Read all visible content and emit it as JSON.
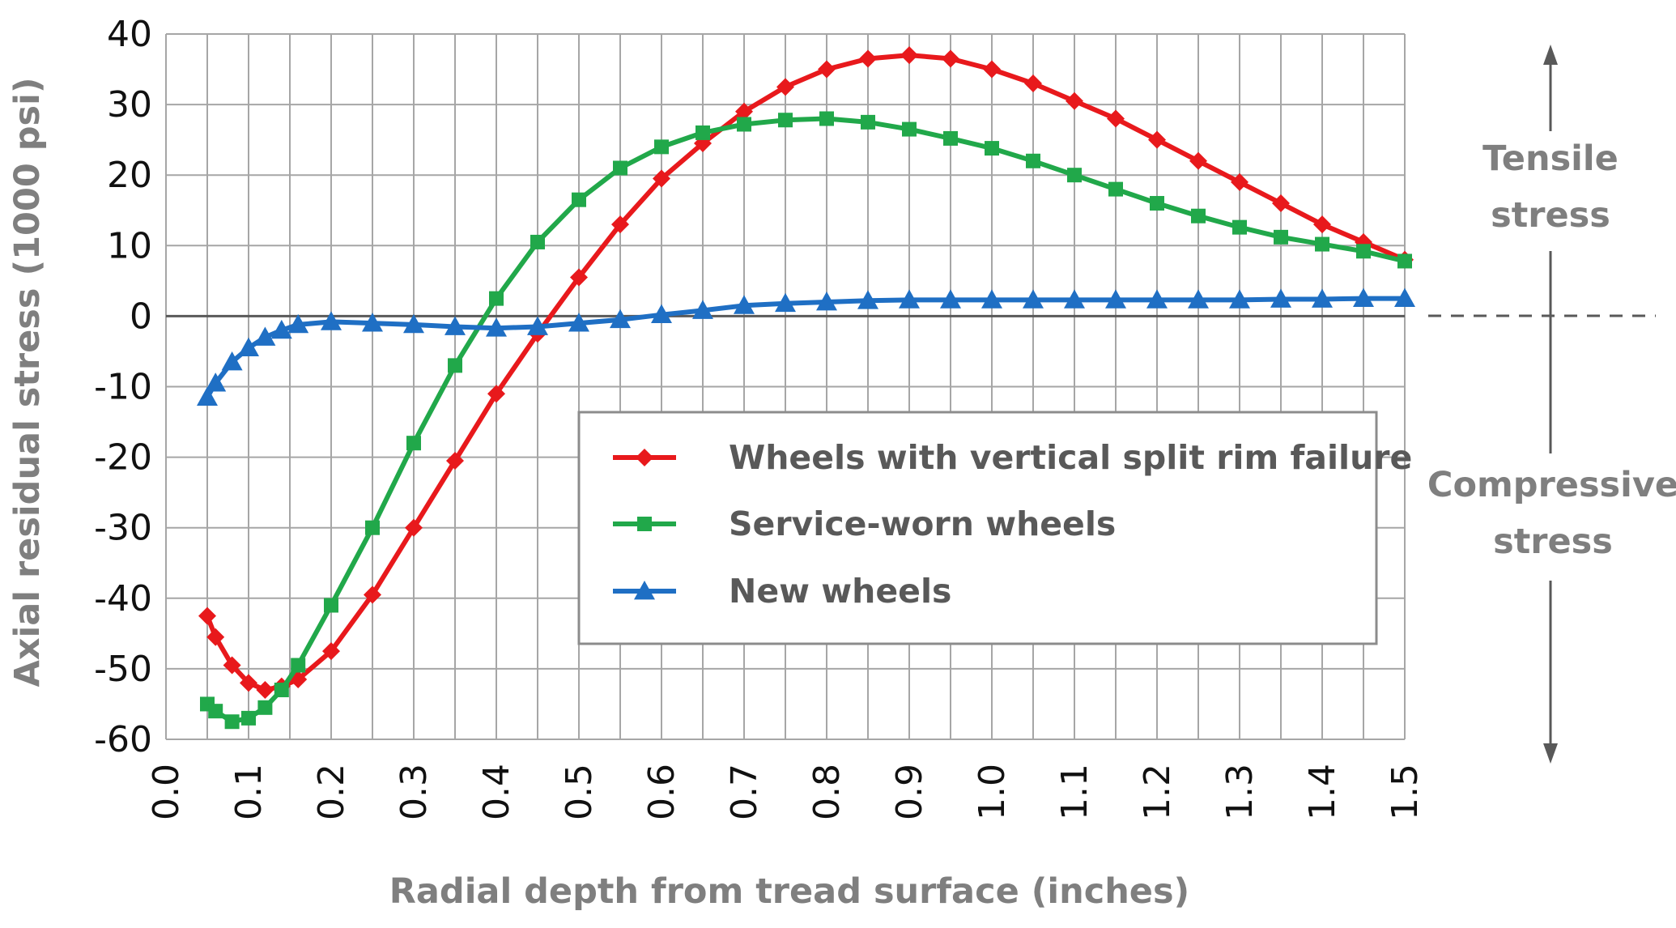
{
  "chart_data": {
    "type": "line",
    "title": "",
    "xlabel": "Radial depth from tread surface (inches)",
    "ylabel": "Axial residual stress (1000 psi)",
    "xlim": [
      0.0,
      1.5
    ],
    "ylim": [
      -60,
      40
    ],
    "x_ticks": [
      "0.0",
      "0.1",
      "0.2",
      "0.3",
      "0.4",
      "0.5",
      "0.6",
      "0.7",
      "0.8",
      "0.9",
      "1.0",
      "1.1",
      "1.2",
      "1.3",
      "1.4",
      "1.5"
    ],
    "y_ticks": [
      "40",
      "30",
      "20",
      "10",
      "0",
      "-10",
      "-20",
      "-30",
      "-40",
      "-50",
      "-60"
    ],
    "grid": true,
    "legend_position": "center-right",
    "annotations": {
      "tensile": [
        "Tensile",
        "stress"
      ],
      "compressive": [
        "Compressive",
        "stress"
      ]
    },
    "series": [
      {
        "name": "Wheels with vertical split rim failure",
        "color": "#e8191c",
        "marker": "diamond",
        "x": [
          0.05,
          0.06,
          0.08,
          0.1,
          0.12,
          0.14,
          0.16,
          0.2,
          0.25,
          0.3,
          0.35,
          0.4,
          0.45,
          0.5,
          0.55,
          0.6,
          0.65,
          0.7,
          0.75,
          0.8,
          0.85,
          0.9,
          0.95,
          1.0,
          1.05,
          1.1,
          1.15,
          1.2,
          1.25,
          1.3,
          1.35,
          1.4,
          1.45,
          1.5
        ],
        "y": [
          -42.5,
          -45.5,
          -49.5,
          -52,
          -53,
          -52.5,
          -51.5,
          -47.5,
          -39.5,
          -30,
          -20.5,
          -11,
          -2.5,
          5.5,
          13,
          19.5,
          24.5,
          29,
          32.5,
          35,
          36.5,
          37,
          36.5,
          35,
          33,
          30.5,
          28,
          25,
          22,
          19,
          16,
          13,
          10.5,
          8
        ]
      },
      {
        "name": "Service-worn wheels",
        "color": "#21a84a",
        "marker": "square",
        "x": [
          0.05,
          0.06,
          0.08,
          0.1,
          0.12,
          0.14,
          0.16,
          0.2,
          0.25,
          0.3,
          0.35,
          0.4,
          0.45,
          0.5,
          0.55,
          0.6,
          0.65,
          0.7,
          0.75,
          0.8,
          0.85,
          0.9,
          0.95,
          1.0,
          1.05,
          1.1,
          1.15,
          1.2,
          1.25,
          1.3,
          1.35,
          1.4,
          1.45,
          1.5
        ],
        "y": [
          -55,
          -56,
          -57.5,
          -57,
          -55.5,
          -53,
          -49.5,
          -41,
          -30,
          -18,
          -7,
          2.5,
          10.5,
          16.5,
          21,
          24,
          26,
          27.2,
          27.8,
          28,
          27.5,
          26.5,
          25.2,
          23.8,
          22,
          20,
          18,
          16,
          14.2,
          12.6,
          11.2,
          10.2,
          9.2,
          7.8
        ]
      },
      {
        "name": "New wheels",
        "color": "#1f6fc4",
        "marker": "triangle",
        "x": [
          0.05,
          0.06,
          0.08,
          0.1,
          0.12,
          0.14,
          0.16,
          0.2,
          0.25,
          0.3,
          0.35,
          0.4,
          0.45,
          0.5,
          0.55,
          0.6,
          0.65,
          0.7,
          0.75,
          0.8,
          0.85,
          0.9,
          0.95,
          1.0,
          1.05,
          1.1,
          1.15,
          1.2,
          1.25,
          1.3,
          1.35,
          1.4,
          1.45,
          1.5
        ],
        "y": [
          -11.5,
          -9.5,
          -6.5,
          -4.5,
          -3,
          -2,
          -1.2,
          -0.8,
          -1,
          -1.2,
          -1.5,
          -1.7,
          -1.5,
          -1,
          -0.5,
          0.2,
          0.8,
          1.5,
          1.8,
          2,
          2.2,
          2.3,
          2.3,
          2.3,
          2.3,
          2.3,
          2.3,
          2.3,
          2.3,
          2.3,
          2.4,
          2.4,
          2.5,
          2.5
        ]
      }
    ]
  }
}
